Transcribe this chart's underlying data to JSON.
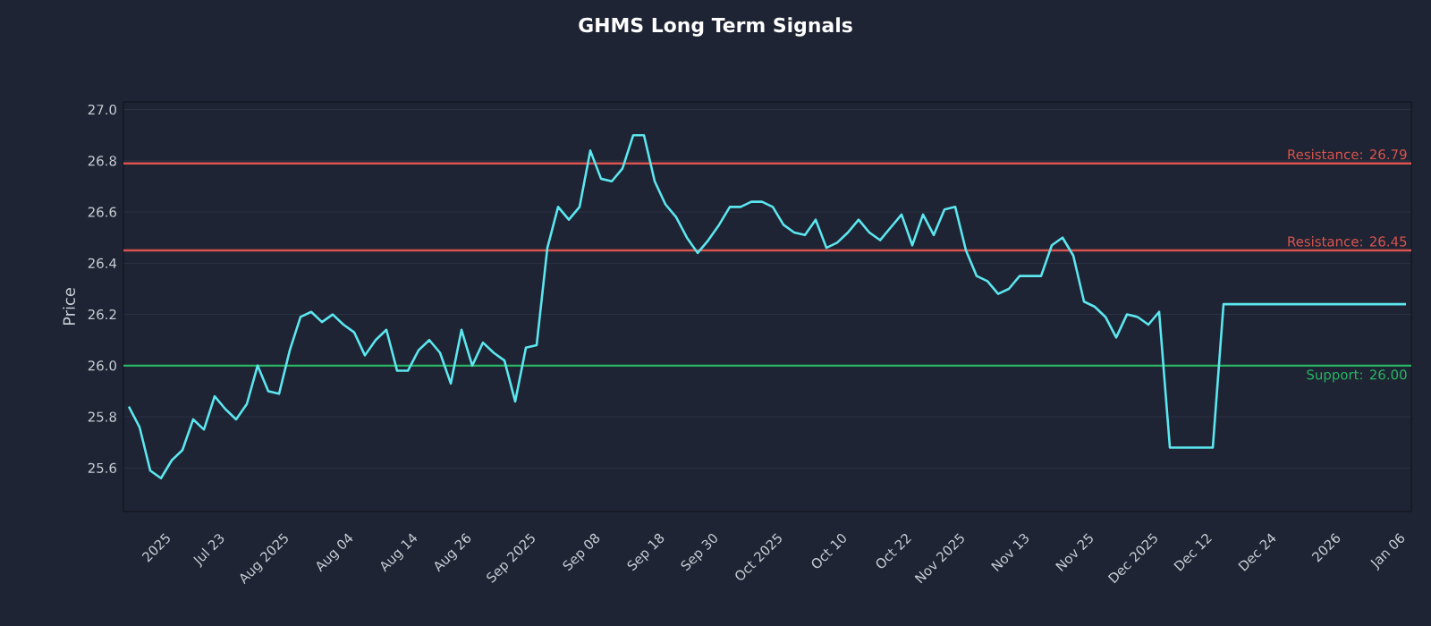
{
  "chart_data": {
    "type": "line",
    "title": "GHMS Long Term Signals",
    "ylabel": "Price",
    "categories": [
      null,
      null,
      null,
      "2025",
      null,
      null,
      null,
      null,
      "Jul 23",
      null,
      null,
      null,
      null,
      null,
      "Aug 2025",
      null,
      null,
      null,
      null,
      null,
      "Aug 04",
      null,
      null,
      null,
      null,
      null,
      "Aug 14",
      null,
      null,
      null,
      null,
      "Aug 26",
      null,
      null,
      null,
      null,
      null,
      "Sep 2025",
      null,
      null,
      null,
      null,
      null,
      "Sep 08",
      null,
      null,
      null,
      null,
      null,
      "Sep 18",
      null,
      null,
      null,
      null,
      "Sep 30",
      null,
      null,
      null,
      null,
      null,
      "Oct 2025",
      null,
      null,
      null,
      null,
      null,
      "Oct 10",
      null,
      null,
      null,
      null,
      null,
      "Oct 22",
      null,
      null,
      null,
      null,
      "Nov 2025",
      null,
      null,
      null,
      null,
      null,
      "Nov 13",
      null,
      null,
      null,
      null,
      null,
      "Nov 25",
      null,
      null,
      null,
      null,
      null,
      "Dec 2025",
      null,
      null,
      null,
      null,
      "Dec 12",
      null,
      null,
      null,
      null,
      null,
      "Dec 24",
      null,
      null,
      null,
      null,
      null,
      "2026",
      null,
      null,
      null,
      null,
      null,
      "Jan 06",
      null
    ],
    "series": [
      {
        "color": "#5ce6ef",
        "values": [
          25.84,
          25.76,
          25.59,
          25.56,
          25.63,
          25.67,
          25.79,
          25.75,
          25.88,
          25.83,
          25.79,
          25.85,
          26.0,
          25.9,
          25.89,
          26.06,
          26.19,
          26.21,
          26.17,
          26.2,
          26.16,
          26.13,
          26.04,
          26.1,
          26.14,
          25.98,
          25.98,
          26.06,
          26.1,
          26.05,
          25.93,
          26.14,
          26.0,
          26.09,
          26.05,
          26.02,
          25.86,
          26.07,
          26.08,
          26.46,
          26.62,
          26.57,
          26.62,
          26.84,
          26.73,
          26.72,
          26.77,
          26.9,
          26.9,
          26.72,
          26.63,
          26.58,
          26.5,
          26.44,
          26.49,
          26.55,
          26.62,
          26.62,
          26.64,
          26.64,
          26.62,
          26.55,
          26.52,
          26.51,
          26.57,
          26.46,
          26.48,
          26.52,
          26.57,
          26.52,
          26.49,
          26.54,
          26.59,
          26.47,
          26.59,
          26.51,
          26.61,
          26.62,
          26.45,
          26.35,
          26.33,
          26.28,
          26.3,
          26.35,
          26.35,
          26.35,
          26.47,
          26.5,
          26.43,
          26.25,
          26.23,
          26.19,
          26.11,
          26.2,
          26.19,
          26.16,
          26.21,
          25.68,
          25.68,
          25.68,
          25.68,
          25.68,
          26.24,
          26.24,
          26.24,
          26.24,
          26.24,
          26.24,
          26.24,
          26.24,
          26.24,
          26.24,
          26.24,
          26.24,
          26.24,
          26.24,
          26.24,
          26.24,
          26.24,
          26.24
        ]
      }
    ],
    "ylim": [
      25.43,
      27.03
    ],
    "yticks": [
      {
        "value": 25.6,
        "label": "25.6"
      },
      {
        "value": 25.8,
        "label": "25.8"
      },
      {
        "value": 26.0,
        "label": "26.0"
      },
      {
        "value": 26.2,
        "label": "26.2"
      },
      {
        "value": 26.4,
        "label": "26.4"
      },
      {
        "value": 26.6,
        "label": "26.6"
      },
      {
        "value": 26.8,
        "label": "26.8"
      },
      {
        "value": 27.0,
        "label": "27.0"
      }
    ],
    "grid": "y",
    "ref_lines": [
      {
        "axis": "y",
        "value": 26.79,
        "label": "Resistance: 26.79",
        "color": "#d9534f"
      },
      {
        "axis": "y",
        "value": 26.45,
        "label": "Resistance: 26.45",
        "color": "#d9534f"
      },
      {
        "axis": "y",
        "value": 26.0,
        "label": "Support: 26.00",
        "color": "#28b463"
      }
    ]
  }
}
